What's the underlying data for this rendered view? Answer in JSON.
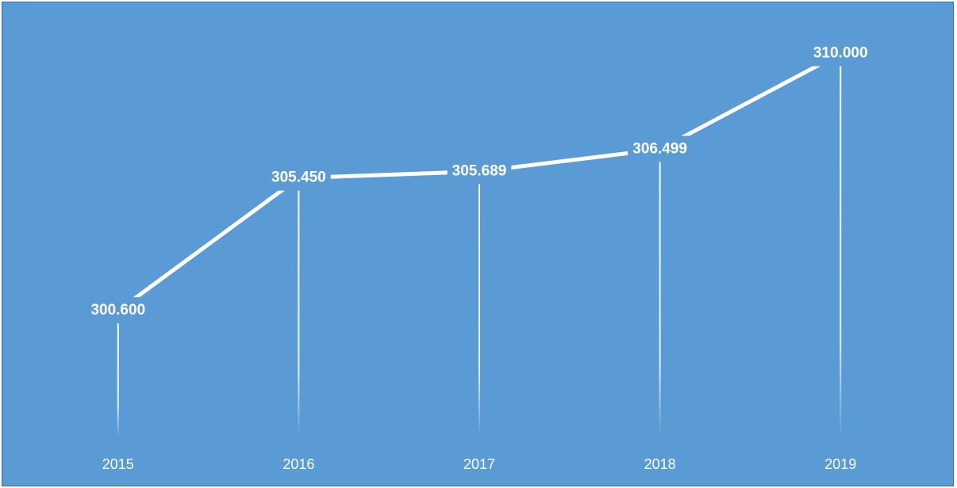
{
  "colors": {
    "background": "#5b9bd5",
    "line": "#ffffff",
    "label_background": "#5b9bd5",
    "text": "#ffffff"
  },
  "chart_data": {
    "type": "line",
    "categories": [
      "2015",
      "2016",
      "2017",
      "2018",
      "2019"
    ],
    "series": [
      {
        "values": [
          300.6,
          305.45,
          305.689,
          306.499,
          310.0
        ]
      }
    ],
    "data_labels": [
      "300.600",
      "305.450",
      "305.689",
      "306.499",
      "310.000"
    ],
    "title": "",
    "xlabel": "",
    "ylabel": "",
    "ylim": [
      296,
      311
    ],
    "drop_lines": true,
    "grid": false,
    "legend": "none"
  }
}
